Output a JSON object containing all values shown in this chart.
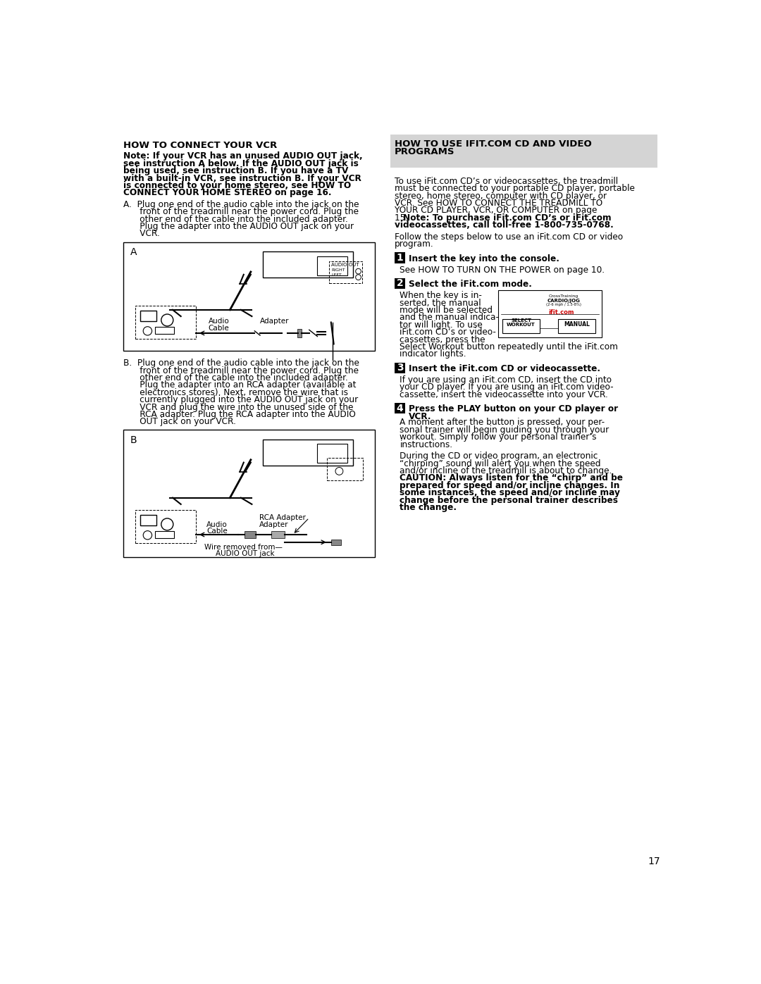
{
  "page_number": "17",
  "bg_color": "#ffffff",
  "right_header_bg": "#d4d4d4",
  "left_col_title": "HOW TO CONNECT YOUR VCR",
  "note_lines": [
    "Note: If your VCR has an unused AUDIO OUT jack,",
    "see instruction A below. If the AUDIO OUT jack is",
    "being used, see instruction B. If you have a TV",
    "with a built-in VCR, see instruction B. If your VCR",
    "is connected to your home stereo, see HOW TO",
    "CONNECT YOUR HOME STEREO on page 16."
  ],
  "para_a_lines": [
    "A.  Plug one end of the audio cable into the jack on the",
    "      front of the treadmill near the power cord. Plug the",
    "      other end of the cable into the included adapter.",
    "      Plug the adapter into the AUDIO OUT jack on your",
    "      VCR."
  ],
  "para_b_lines": [
    "B.  Plug one end of the audio cable into the jack on the",
    "      front of the treadmill near the power cord. Plug the",
    "      other end of the cable into the included adapter.",
    "      Plug the adapter into an RCA adapter (available at",
    "      electronics stores). Next, remove the wire that is",
    "      currently plugged into the AUDIO OUT jack on your",
    "      VCR and plug the wire into the unused side of the",
    "      RCA adapter. Plug the RCA adapter into the AUDIO",
    "      OUT jack on your VCR."
  ],
  "right_col_title_line1": "HOW TO USE IFIT.COM CD AND VIDEO",
  "right_col_title_line2": "PROGRAMS",
  "intro_normal_lines": [
    "To use iFit.com CD’s or videocassettes, the treadmill",
    "must be connected to your portable CD player, portable",
    "stereo, home stereo, computer with CD player, or",
    "VCR. See HOW TO CONNECT THE TREADMILL TO",
    "YOUR CD PLAYER, VCR, OR COMPUTER on page"
  ],
  "intro_line_num": "15. ",
  "intro_bold_line1": "Note: To purchase iFit.com CD’s or iFit.com",
  "intro_bold_line2": "videocassettes, call toll-free 1-800-735-0768.",
  "follow_lines": [
    "Follow the steps below to use an iFit.com CD or video",
    "program."
  ],
  "step1_title": "Insert the key into the console.",
  "step1_body": "See HOW TO TURN ON THE POWER on page 10.",
  "step2_title": "Select the iFit.com mode.",
  "step2_text_lines": [
    "When the key is in-",
    "serted, the manual",
    "mode will be selected",
    "and the manual indica-",
    "tor will light. To use",
    "iFit.com CD’s or video-",
    "cassettes, press the"
  ],
  "step2_tail_lines": [
    "Select Workout button repeatedly until the iFit.com",
    "indicator lights."
  ],
  "step3_title": "Insert the iFit.com CD or videocassette.",
  "step3_lines": [
    "If you are using an iFit.com CD, insert the CD into",
    "your CD player. If you are using an iFit.com video-",
    "cassette, insert the videocassette into your VCR."
  ],
  "step4_title_line1": "Press the PLAY button on your CD player or",
  "step4_title_line2": "VCR.",
  "step4_body1_lines": [
    "A moment after the button is pressed, your per-",
    "sonal trainer will begin guiding you through your",
    "workout. Simply follow your personal trainer’s",
    "instructions."
  ],
  "step4_body2_normal_lines": [
    "During the CD or video program, an electronic",
    "“chirping” sound will alert you when the speed",
    "and/or incline of the treadmill is about to change."
  ],
  "step4_body2_bold_lines": [
    "CAUTION: Always listen for the “chirp” and be",
    "prepared for speed and/or incline changes. In",
    "some instances, the speed and/or incline may",
    "change before the personal trainer describes",
    "the change."
  ]
}
